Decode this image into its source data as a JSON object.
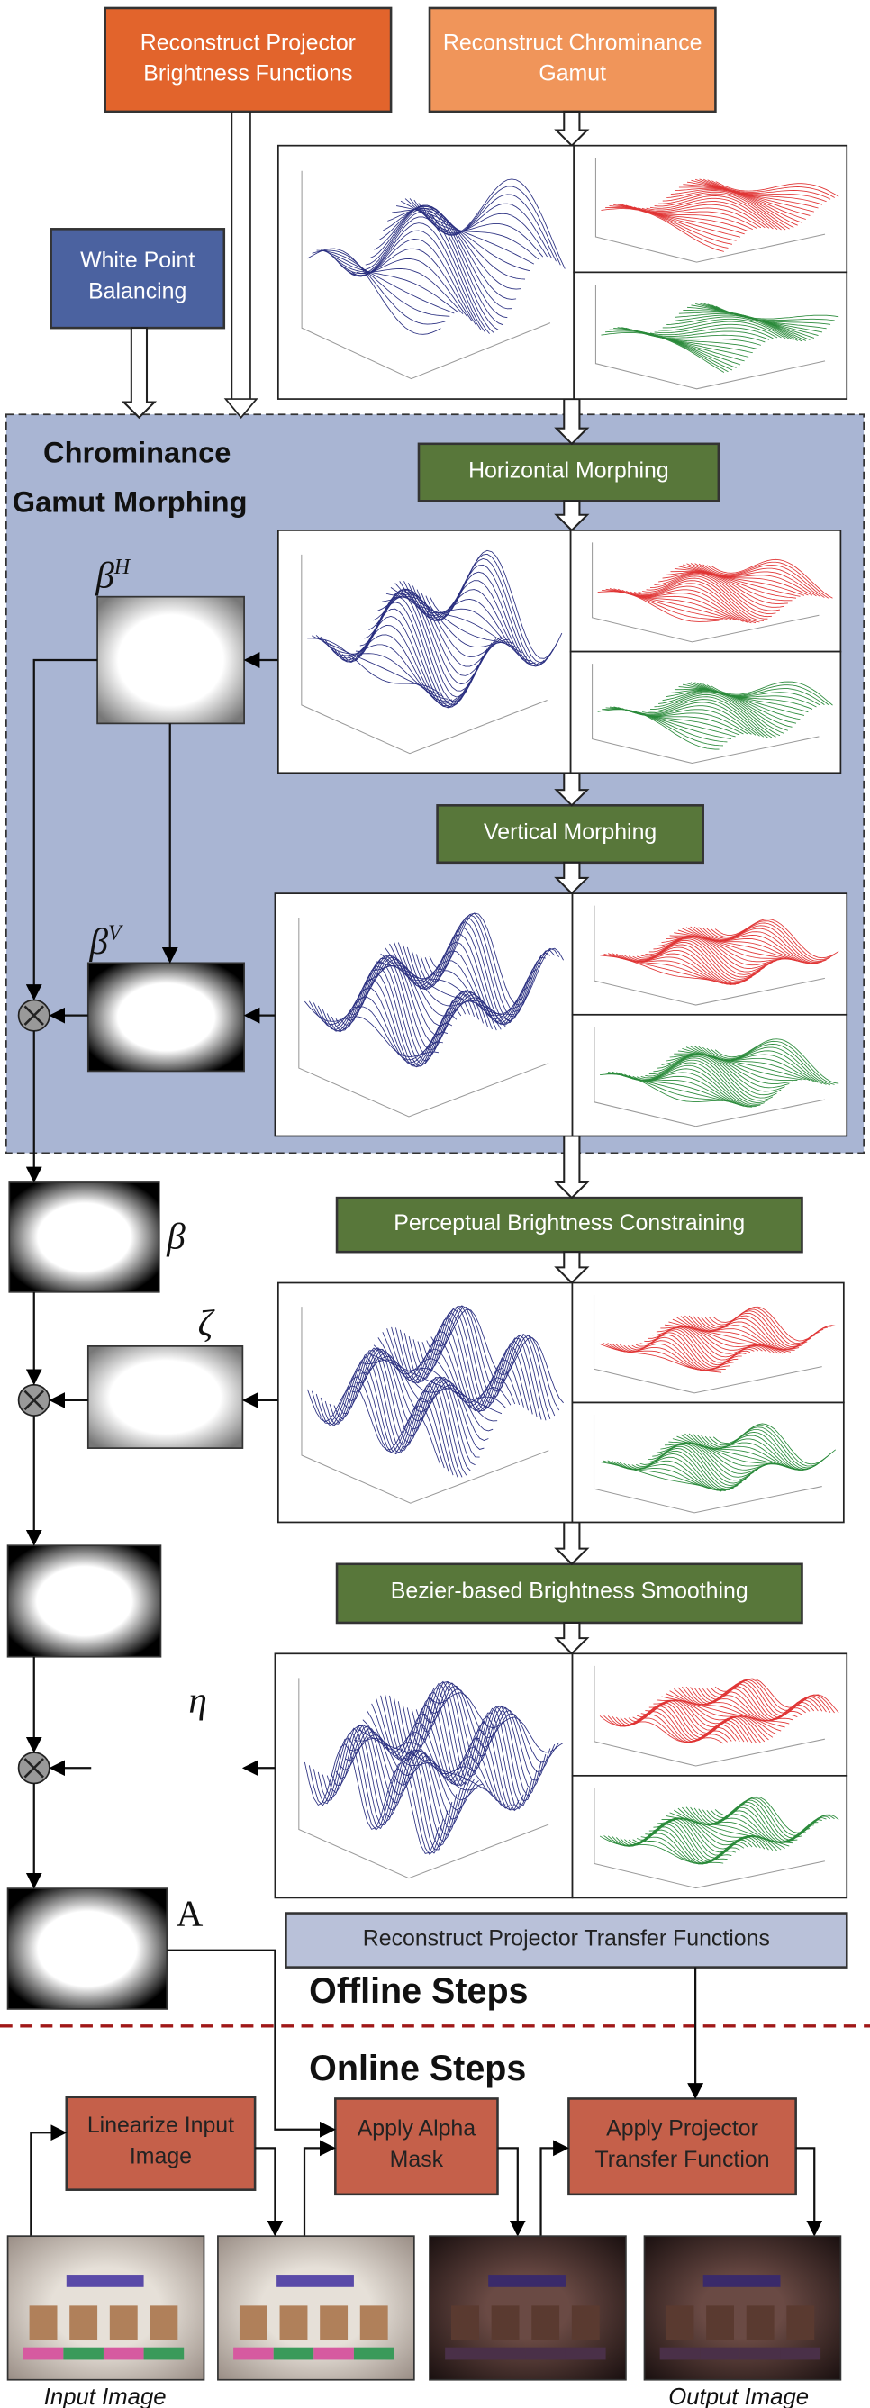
{
  "boxes": [
    {
      "label": "Reconstruct Projector Brightness Functions"
    },
    {
      "label": "Reconstruct Chrominance Gamut"
    },
    {
      "label": "White Point Balancing"
    },
    {
      "label": "Horizontal Morphing"
    },
    {
      "label": "Vertical Morphing"
    },
    {
      "label": "Perceptual Brightness Constraining"
    },
    {
      "label": "Bezier-based Brightness Smoothing"
    },
    {
      "label": "Reconstruct Projector Transfer Functions"
    },
    {
      "label": "Linearize Input Image"
    },
    {
      "label": "Apply Alpha Mask"
    },
    {
      "label": "Apply Projector Transfer Function"
    }
  ],
  "section_title": "Chrominance Gamut Morphing",
  "offline_label": "Offline Steps",
  "online_label": "Online Steps",
  "masks": [
    {
      "symbol": "β",
      "sup": "H"
    },
    {
      "symbol": "β",
      "sup": "V"
    },
    {
      "symbol": "β"
    },
    {
      "symbol": "ζ"
    },
    {
      "symbol": "η"
    },
    {
      "symbol": "A"
    }
  ],
  "images": {
    "input": "Input Image",
    "output": "Output Image"
  }
}
